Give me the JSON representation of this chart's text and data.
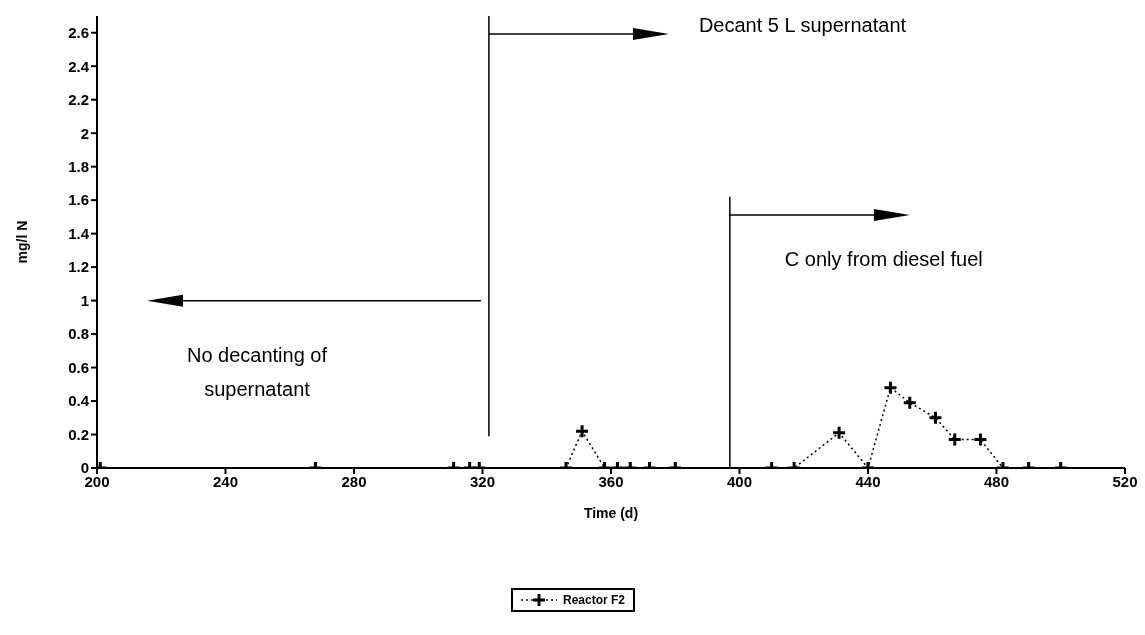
{
  "chart_data": {
    "type": "line",
    "xlabel": "Time (d)",
    "ylabel": "mg/l N",
    "x": [
      201,
      268,
      311,
      316,
      319,
      346,
      351,
      358,
      362,
      366,
      372,
      380,
      410,
      417,
      431,
      440,
      447,
      453,
      461,
      467,
      475,
      482,
      490,
      500
    ],
    "series": [
      {
        "name": "Reactor F2",
        "color": "#000000",
        "values": [
          0,
          0,
          0,
          0,
          0,
          0,
          0.22,
          0,
          0,
          0,
          0,
          0,
          0,
          0,
          0.21,
          0,
          0.48,
          0.39,
          0.3,
          0.17,
          0.17,
          0,
          0,
          0
        ]
      }
    ],
    "xlim": [
      200,
      520
    ],
    "xticks": [
      200,
      240,
      280,
      320,
      360,
      400,
      440,
      480,
      520
    ],
    "ylim": [
      0,
      2.7
    ],
    "yticks": [
      0,
      0.2,
      0.4,
      0.6,
      0.8,
      1,
      1.2,
      1.4,
      1.6,
      1.8,
      2,
      2.2,
      2.4,
      2.6
    ],
    "ref_lines": [
      {
        "axis": "x",
        "value": 322,
        "color": "#000000"
      },
      {
        "axis": "x",
        "value": 397,
        "color": "#000000"
      }
    ],
    "annotations": [
      "Decant 5 L supernatant",
      "C only from diesel fuel",
      "No decanting of supernatant"
    ],
    "marker": "cross",
    "line_style": "dotted",
    "legend": "bottom",
    "grid": false
  }
}
